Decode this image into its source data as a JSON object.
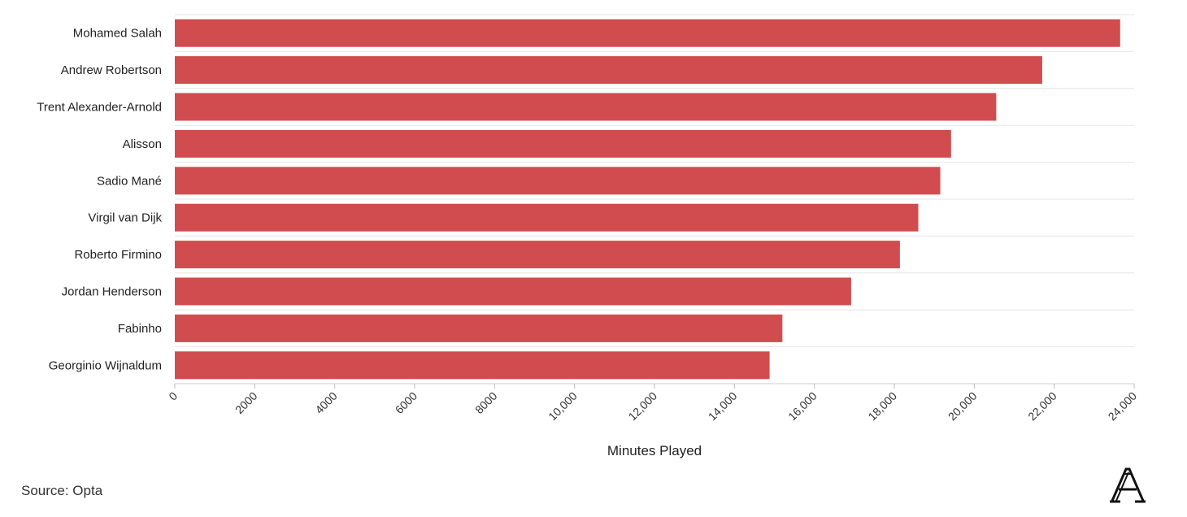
{
  "chart_data": {
    "type": "bar",
    "orientation": "horizontal",
    "categories": [
      "Mohamed Salah",
      "Andrew Robertson",
      "Trent Alexander-Arnold",
      "Alisson",
      "Sadio Mané",
      "Virgil van Dijk",
      "Roberto Firmino",
      "Jordan Henderson",
      "Fabinho",
      "Georginio Wijnaldum"
    ],
    "values": [
      23650,
      21700,
      20550,
      19420,
      19150,
      18600,
      18140,
      16920,
      15200,
      14880
    ],
    "xlabel": "Minutes Played",
    "xlim": [
      0,
      24000
    ],
    "xticks": [
      0,
      2000,
      4000,
      6000,
      8000,
      10000,
      12000,
      14000,
      16000,
      18000,
      20000,
      22000,
      24000
    ],
    "xtick_labels": [
      "0",
      "2000",
      "4000",
      "6000",
      "8000",
      "10,000",
      "12,000",
      "14,000",
      "16,000",
      "18,000",
      "20,000",
      "22,000",
      "24,000"
    ],
    "grid": true,
    "bar_color": "#d14c4f",
    "source": "Source: Opta"
  }
}
